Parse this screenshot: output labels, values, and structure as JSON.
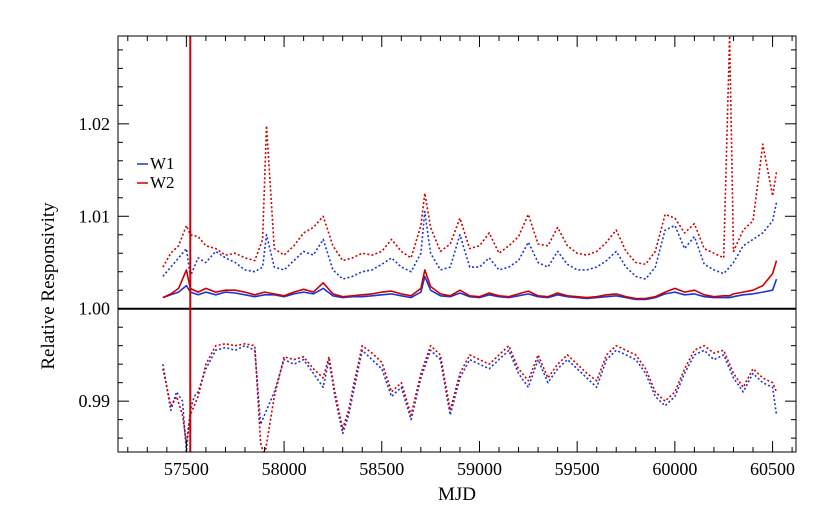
{
  "chart_data": {
    "type": "line",
    "title": "",
    "xlabel": "MJD",
    "ylabel": "Relative Responsivity",
    "xlim": [
      57150,
      60620
    ],
    "ylim": [
      0.9845,
      1.0295
    ],
    "x_ticks": [
      57500,
      58000,
      58500,
      59000,
      59500,
      60000,
      60500
    ],
    "x_tick_labels": [
      "57500",
      "58000",
      "58500",
      "59000",
      "59500",
      "60000",
      "60500"
    ],
    "y_ticks": [
      0.99,
      1.0,
      1.01,
      1.02
    ],
    "y_tick_labels": [
      "0.99",
      "1.00",
      "1.01",
      "1.02"
    ],
    "reference_line": {
      "y": 1.0,
      "color": "#000000"
    },
    "vertical_line": {
      "x": 57520,
      "color": "#cc0000"
    },
    "legend": {
      "placement": "left",
      "entries": [
        {
          "label": "W1",
          "color": "#1a35d6"
        },
        {
          "label": "W2",
          "color": "#cc0000"
        }
      ]
    },
    "series": [
      {
        "name": "W1",
        "band": "upper envelope",
        "style": "dotted",
        "color": "#1a35d6",
        "x": [
          57380,
          57420,
          57460,
          57500,
          57520,
          57560,
          57600,
          57650,
          57700,
          57750,
          57800,
          57850,
          57890,
          57910,
          57950,
          58000,
          58050,
          58100,
          58150,
          58200,
          58250,
          58300,
          58350,
          58400,
          58450,
          58500,
          58550,
          58600,
          58650,
          58700,
          58720,
          58750,
          58800,
          58850,
          58900,
          58950,
          59000,
          59050,
          59100,
          59150,
          59200,
          59250,
          59300,
          59350,
          59400,
          59450,
          59500,
          59550,
          59600,
          59650,
          59700,
          59750,
          59800,
          59850,
          59900,
          59950,
          60000,
          60050,
          60100,
          60150,
          60200,
          60250,
          60280,
          60300,
          60350,
          60400,
          60450,
          60500,
          60520
        ],
        "y": [
          1.0035,
          1.0045,
          1.0055,
          1.0065,
          1.0035,
          1.0055,
          1.005,
          1.0062,
          1.0055,
          1.005,
          1.0042,
          1.004,
          1.0045,
          1.008,
          1.0045,
          1.0042,
          1.0052,
          1.0062,
          1.0058,
          1.0075,
          1.0042,
          1.0032,
          1.0035,
          1.004,
          1.0042,
          1.0048,
          1.0055,
          1.0045,
          1.004,
          1.006,
          1.0105,
          1.006,
          1.0042,
          1.0045,
          1.008,
          1.0045,
          1.0045,
          1.0055,
          1.0042,
          1.0045,
          1.0052,
          1.0072,
          1.005,
          1.0045,
          1.0062,
          1.0048,
          1.0042,
          1.0042,
          1.0045,
          1.0052,
          1.0062,
          1.0045,
          1.0035,
          1.0032,
          1.0045,
          1.0085,
          1.009,
          1.0065,
          1.0078,
          1.0048,
          1.0042,
          1.0038,
          1.0045,
          1.005,
          1.0068,
          1.0075,
          1.0082,
          1.0095,
          1.0115
        ]
      },
      {
        "name": "W2",
        "band": "upper envelope",
        "style": "dotted",
        "color": "#cc0000",
        "x": [
          57380,
          57420,
          57460,
          57500,
          57520,
          57560,
          57600,
          57650,
          57700,
          57750,
          57800,
          57850,
          57890,
          57910,
          57950,
          58000,
          58050,
          58100,
          58150,
          58200,
          58250,
          58300,
          58350,
          58400,
          58450,
          58500,
          58550,
          58600,
          58650,
          58700,
          58720,
          58750,
          58800,
          58850,
          58900,
          58950,
          59000,
          59050,
          59100,
          59150,
          59200,
          59250,
          59300,
          59350,
          59400,
          59450,
          59500,
          59550,
          59600,
          59650,
          59700,
          59750,
          59800,
          59850,
          59900,
          59950,
          60000,
          60050,
          60100,
          60150,
          60200,
          60250,
          60280,
          60300,
          60350,
          60400,
          60450,
          60500,
          60520
        ],
        "y": [
          1.0045,
          1.006,
          1.0068,
          1.009,
          1.008,
          1.0078,
          1.0068,
          1.0065,
          1.0058,
          1.006,
          1.0055,
          1.0052,
          1.0075,
          1.0198,
          1.0065,
          1.0058,
          1.0068,
          1.0082,
          1.0088,
          1.01,
          1.0068,
          1.0052,
          1.0055,
          1.006,
          1.0058,
          1.0062,
          1.0075,
          1.0062,
          1.0055,
          1.009,
          1.0125,
          1.0088,
          1.0062,
          1.007,
          1.0098,
          1.0065,
          1.0068,
          1.0082,
          1.006,
          1.0068,
          1.0078,
          1.0102,
          1.007,
          1.0068,
          1.0088,
          1.0068,
          1.006,
          1.0058,
          1.0062,
          1.0072,
          1.0085,
          1.0062,
          1.005,
          1.0048,
          1.0062,
          1.0102,
          1.0098,
          1.0082,
          1.0092,
          1.0065,
          1.006,
          1.0055,
          1.0295,
          1.0062,
          1.0085,
          1.0095,
          1.0178,
          1.0122,
          1.0148
        ]
      },
      {
        "name": "W1",
        "band": "mean",
        "style": "solid",
        "color": "#1a35d6",
        "x": [
          57380,
          57420,
          57460,
          57500,
          57520,
          57560,
          57600,
          57650,
          57700,
          57750,
          57800,
          57850,
          57900,
          57950,
          58000,
          58050,
          58100,
          58150,
          58200,
          58250,
          58300,
          58350,
          58400,
          58450,
          58500,
          58550,
          58600,
          58650,
          58700,
          58720,
          58750,
          58800,
          58850,
          58900,
          58950,
          59000,
          59050,
          59100,
          59150,
          59200,
          59250,
          59300,
          59350,
          59400,
          59450,
          59500,
          59550,
          59600,
          59650,
          59700,
          59750,
          59800,
          59850,
          59900,
          59950,
          60000,
          60050,
          60100,
          60150,
          60200,
          60250,
          60280,
          60300,
          60350,
          60400,
          60450,
          60500,
          60520
        ],
        "y": [
          1.0012,
          1.0015,
          1.0018,
          1.0025,
          1.0018,
          1.0015,
          1.0018,
          1.0015,
          1.0018,
          1.0017,
          1.0015,
          1.0013,
          1.0015,
          1.0015,
          1.0013,
          1.0016,
          1.0018,
          1.0016,
          1.0022,
          1.0014,
          1.0012,
          1.0013,
          1.0013,
          1.0014,
          1.0015,
          1.0016,
          1.0014,
          1.0012,
          1.0018,
          1.0035,
          1.002,
          1.0014,
          1.0013,
          1.0017,
          1.0013,
          1.0012,
          1.0015,
          1.0013,
          1.0012,
          1.0014,
          1.0016,
          1.0013,
          1.0012,
          1.0015,
          1.0013,
          1.0012,
          1.0011,
          1.0012,
          1.0013,
          1.0014,
          1.0012,
          1.001,
          1.001,
          1.0012,
          1.0016,
          1.0018,
          1.0015,
          1.0016,
          1.0013,
          1.0012,
          1.0012,
          1.0012,
          1.0013,
          1.0015,
          1.0016,
          1.0018,
          1.002,
          1.0032
        ]
      },
      {
        "name": "W2",
        "band": "mean",
        "style": "solid",
        "color": "#cc0000",
        "x": [
          57380,
          57420,
          57460,
          57500,
          57520,
          57560,
          57600,
          57650,
          57700,
          57750,
          57800,
          57850,
          57900,
          57950,
          58000,
          58050,
          58100,
          58150,
          58200,
          58250,
          58300,
          58350,
          58400,
          58450,
          58500,
          58550,
          58600,
          58650,
          58700,
          58720,
          58750,
          58800,
          58850,
          58900,
          58950,
          59000,
          59050,
          59100,
          59150,
          59200,
          59250,
          59300,
          59350,
          59400,
          59450,
          59500,
          59550,
          59600,
          59650,
          59700,
          59750,
          59800,
          59850,
          59900,
          59950,
          60000,
          60050,
          60100,
          60150,
          60200,
          60250,
          60280,
          60300,
          60350,
          60400,
          60450,
          60500,
          60520
        ],
        "y": [
          1.0012,
          1.0016,
          1.0022,
          1.0042,
          1.0022,
          1.0018,
          1.0022,
          1.0018,
          1.002,
          1.002,
          1.0018,
          1.0015,
          1.0018,
          1.0016,
          1.0014,
          1.0018,
          1.0021,
          1.0018,
          1.0028,
          1.0016,
          1.0013,
          1.0014,
          1.0015,
          1.0016,
          1.0018,
          1.0019,
          1.0016,
          1.0014,
          1.0022,
          1.0042,
          1.0024,
          1.0016,
          1.0014,
          1.002,
          1.0014,
          1.0013,
          1.0017,
          1.0014,
          1.0013,
          1.0016,
          1.0019,
          1.0014,
          1.0013,
          1.0017,
          1.0014,
          1.0013,
          1.0012,
          1.0013,
          1.0015,
          1.0016,
          1.0013,
          1.0011,
          1.0011,
          1.0013,
          1.0018,
          1.0022,
          1.0018,
          1.002,
          1.0015,
          1.0013,
          1.0014,
          1.0014,
          1.0016,
          1.0018,
          1.002,
          1.0025,
          1.0038,
          1.0052
        ]
      },
      {
        "name": "W1",
        "band": "lower envelope",
        "style": "dotted",
        "color": "#1a35d6",
        "x": [
          57380,
          57420,
          57450,
          57480,
          57500,
          57520,
          57540,
          57560,
          57600,
          57650,
          57700,
          57750,
          57800,
          57850,
          57880,
          57900,
          57950,
          58000,
          58050,
          58100,
          58150,
          58200,
          58230,
          58260,
          58300,
          58330,
          58350,
          58400,
          58450,
          58500,
          58550,
          58600,
          58650,
          58700,
          58750,
          58800,
          58850,
          58900,
          58950,
          59000,
          59050,
          59100,
          59150,
          59200,
          59250,
          59300,
          59350,
          59400,
          59450,
          59500,
          59550,
          59600,
          59650,
          59700,
          59750,
          59800,
          59850,
          59900,
          59950,
          60000,
          60050,
          60100,
          60150,
          60200,
          60250,
          60300,
          60350,
          60400,
          60450,
          60500,
          60520
        ],
        "y": [
          0.994,
          0.989,
          0.991,
          0.99,
          0.9845,
          0.989,
          0.9905,
          0.991,
          0.9935,
          0.9955,
          0.9958,
          0.9955,
          0.996,
          0.9955,
          0.9875,
          0.9885,
          0.991,
          0.9945,
          0.994,
          0.9945,
          0.993,
          0.9915,
          0.9945,
          0.9905,
          0.9865,
          0.9885,
          0.9905,
          0.9955,
          0.9945,
          0.9935,
          0.9905,
          0.9915,
          0.988,
          0.9925,
          0.9955,
          0.9945,
          0.9885,
          0.9925,
          0.9945,
          0.994,
          0.9935,
          0.9945,
          0.9955,
          0.993,
          0.9915,
          0.9945,
          0.992,
          0.9935,
          0.9945,
          0.9935,
          0.9925,
          0.9915,
          0.9945,
          0.9955,
          0.995,
          0.9945,
          0.993,
          0.9905,
          0.9895,
          0.9905,
          0.993,
          0.995,
          0.9955,
          0.9945,
          0.995,
          0.9925,
          0.991,
          0.993,
          0.992,
          0.9915,
          0.9885
        ]
      },
      {
        "name": "W2",
        "band": "lower envelope",
        "style": "dotted",
        "color": "#cc0000",
        "x": [
          57380,
          57420,
          57450,
          57480,
          57500,
          57520,
          57540,
          57560,
          57600,
          57650,
          57700,
          57750,
          57800,
          57850,
          57880,
          57900,
          57950,
          58000,
          58050,
          58100,
          58150,
          58200,
          58230,
          58260,
          58300,
          58330,
          58350,
          58400,
          58450,
          58500,
          58550,
          58600,
          58650,
          58700,
          58750,
          58800,
          58850,
          58900,
          58950,
          59000,
          59050,
          59100,
          59150,
          59200,
          59250,
          59300,
          59350,
          59400,
          59450,
          59500,
          59550,
          59600,
          59650,
          59700,
          59750,
          59800,
          59850,
          59900,
          59950,
          60000,
          60050,
          60100,
          60150,
          60200,
          60250,
          60300,
          60350,
          60400,
          60450,
          60500,
          60520
        ],
        "y": [
          0.9935,
          0.9895,
          0.9905,
          0.9885,
          0.9855,
          0.9885,
          0.9895,
          0.9905,
          0.994,
          0.996,
          0.9962,
          0.996,
          0.9962,
          0.996,
          0.9855,
          0.984,
          0.9905,
          0.9948,
          0.9945,
          0.9948,
          0.9935,
          0.9925,
          0.9948,
          0.991,
          0.987,
          0.989,
          0.9912,
          0.996,
          0.9952,
          0.9942,
          0.991,
          0.992,
          0.9885,
          0.993,
          0.996,
          0.995,
          0.989,
          0.993,
          0.995,
          0.9945,
          0.994,
          0.995,
          0.996,
          0.9935,
          0.9922,
          0.995,
          0.9925,
          0.994,
          0.995,
          0.994,
          0.993,
          0.9922,
          0.995,
          0.996,
          0.9955,
          0.995,
          0.9935,
          0.991,
          0.99,
          0.991,
          0.9935,
          0.9955,
          0.996,
          0.9952,
          0.9955,
          0.993,
          0.9915,
          0.9935,
          0.9925,
          0.992,
          0.991
        ]
      }
    ]
  }
}
